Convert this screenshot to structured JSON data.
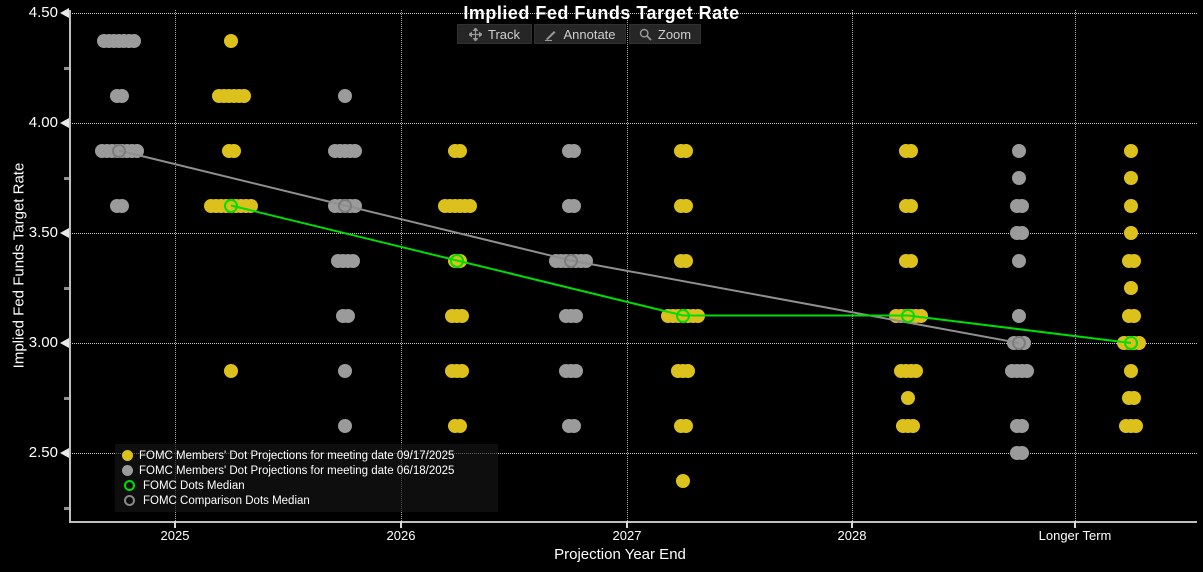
{
  "title": "Implied Fed Funds Target Rate",
  "toolbar": {
    "track_label": "Track",
    "annotate_label": "Annotate",
    "zoom_label": "Zoom"
  },
  "colors": {
    "background": "#000000",
    "dots_current": "#dcc11c",
    "dots_comparison": "#9b9b9b",
    "median_green": "#00dd00",
    "comparison_ring": "#7d7d7d",
    "comparison_line": "#8f8f8f",
    "grid": "#ffffff",
    "axis": "#bfbfbf"
  },
  "chart_data": {
    "type": "scatter",
    "subtype": "fomc-dot-plot",
    "title": "Implied Fed Funds Target Rate",
    "xlabel": "Projection Year End",
    "ylabel": "Implied Fed Funds Target Rate",
    "categories": [
      "2025",
      "2026",
      "2027",
      "2028",
      "Longer Term"
    ],
    "y_ticks_major": [
      4.5,
      4.0,
      3.5,
      3.0,
      2.5
    ],
    "y_tick_labels": [
      "4.50",
      "4.00",
      "3.50",
      "3.00",
      "2.50"
    ],
    "y_ticks_minor": [
      4.25,
      3.75,
      3.25,
      2.75,
      2.25
    ],
    "ylim": [
      2.19,
      4.52
    ],
    "grid": "dotted; horizontal at major y ticks, vertical at category centers",
    "legend_position": "bottom-left inside plot",
    "series": [
      {
        "name": "FOMC Members' Dot Projections for meeting date 09/17/2025",
        "marker": "filled-dot",
        "color": "#dcc11c",
        "column_offset": "right",
        "dots": {
          "2025": [
            [
              4.375,
              1
            ],
            [
              4.125,
              6
            ],
            [
              3.875,
              2
            ],
            [
              3.625,
              9
            ],
            [
              2.875,
              1
            ]
          ],
          "2026": [
            [
              3.875,
              2
            ],
            [
              3.625,
              6
            ],
            [
              3.375,
              2
            ],
            [
              3.125,
              3
            ],
            [
              2.875,
              3
            ],
            [
              2.625,
              2
            ]
          ],
          "2027": [
            [
              3.875,
              2
            ],
            [
              3.625,
              2
            ],
            [
              3.375,
              2
            ],
            [
              3.125,
              7
            ],
            [
              2.875,
              3
            ],
            [
              2.625,
              2
            ],
            [
              2.375,
              1
            ]
          ],
          "2028": [
            [
              3.875,
              2
            ],
            [
              3.625,
              2
            ],
            [
              3.375,
              2
            ],
            [
              3.125,
              6
            ],
            [
              2.875,
              4
            ],
            [
              2.75,
              1
            ],
            [
              2.625,
              3
            ]
          ],
          "Longer Term": [
            [
              3.875,
              1
            ],
            [
              3.75,
              1
            ],
            [
              3.625,
              1
            ],
            [
              3.5,
              1
            ],
            [
              3.375,
              2
            ],
            [
              3.25,
              1
            ],
            [
              3.125,
              2
            ],
            [
              3.0,
              4
            ],
            [
              2.875,
              1
            ],
            [
              2.75,
              2
            ],
            [
              2.625,
              3
            ]
          ]
        }
      },
      {
        "name": "FOMC Members' Dot Projections for meeting date 06/18/2025",
        "marker": "filled-dot",
        "color": "#9b9b9b",
        "column_offset": "left",
        "dots": {
          "2025": [
            [
              4.375,
              7
            ],
            [
              4.125,
              2
            ],
            [
              3.875,
              8
            ],
            [
              3.625,
              2
            ]
          ],
          "2026": [
            [
              4.125,
              1
            ],
            [
              3.875,
              5
            ],
            [
              3.625,
              5
            ],
            [
              3.375,
              4
            ],
            [
              3.125,
              2
            ],
            [
              2.875,
              1
            ],
            [
              2.625,
              1
            ]
          ],
          "2027": [
            [
              3.875,
              2
            ],
            [
              3.625,
              2
            ],
            [
              3.375,
              7
            ],
            [
              3.125,
              3
            ],
            [
              2.875,
              3
            ],
            [
              2.625,
              2
            ]
          ],
          "Longer Term": [
            [
              3.875,
              1
            ],
            [
              3.75,
              1
            ],
            [
              3.625,
              2
            ],
            [
              3.5,
              2
            ],
            [
              3.375,
              1
            ],
            [
              3.125,
              1
            ],
            [
              3.0,
              3
            ],
            [
              2.875,
              4
            ],
            [
              2.625,
              2
            ],
            [
              2.5,
              2
            ]
          ]
        }
      },
      {
        "name": "FOMC Dots Median",
        "marker": "open-circle",
        "color": "#00dd00",
        "line": true,
        "column_offset": "right",
        "medians": [
          [
            "2025",
            3.625
          ],
          [
            "2026",
            3.375
          ],
          [
            "2027",
            3.125
          ],
          [
            "2028",
            3.125
          ],
          [
            "Longer Term",
            3.0
          ]
        ]
      },
      {
        "name": "FOMC Comparison Dots Median",
        "marker": "open-circle",
        "color": "#7d7d7d",
        "line_color": "#8f8f8f",
        "line": true,
        "column_offset": "left",
        "medians": [
          [
            "2025",
            3.875
          ],
          [
            "2026",
            3.625
          ],
          [
            "2027",
            3.375
          ],
          [
            "Longer Term",
            3.0
          ]
        ]
      }
    ]
  }
}
